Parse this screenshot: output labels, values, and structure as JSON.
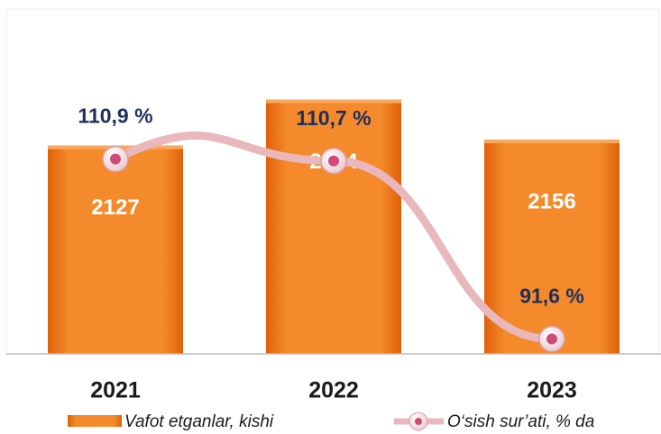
{
  "chart_data": {
    "type": "bar_line",
    "categories": [
      "2021",
      "2022",
      "2023"
    ],
    "series": [
      {
        "name": "Vafot etganlar, kishi",
        "color": "#f07818",
        "values": [
          2127,
          2354,
          2156
        ]
      },
      {
        "name": "O‘sish sur’ati, % da",
        "color": "#e8b8bc",
        "marker_color": "#d04a78",
        "axis": "y2",
        "values": [
          110.9,
          110.7,
          91.6
        ],
        "value_labels": [
          "110,9 %",
          "110,7 %",
          "91,6 %"
        ]
      }
    ],
    "ylim": [
      1100,
      2800
    ],
    "y2lim": [
      90,
      127
    ]
  }
}
